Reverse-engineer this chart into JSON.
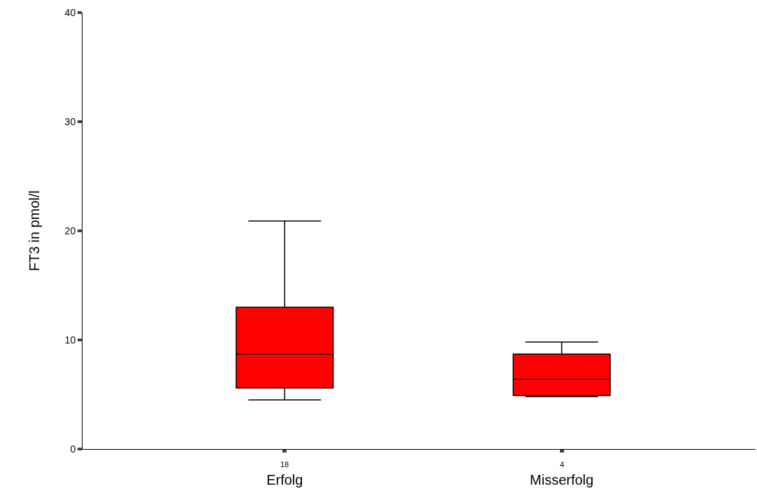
{
  "chart_data": {
    "type": "box",
    "ylabel": "FT3 in pmol/l",
    "categories": [
      "Erfolg",
      "Misserfolg"
    ],
    "boxes": [
      {
        "low": 4.5,
        "q1": 5.6,
        "median": 8.7,
        "q3": 13.0,
        "high": 20.9
      },
      {
        "low": 4.8,
        "q1": 4.9,
        "median": 6.4,
        "q3": 8.7,
        "high": 9.8
      }
    ],
    "color": "#ff0000",
    "ylim": [
      0,
      40
    ],
    "yticks": [
      0,
      10,
      20,
      30,
      40
    ],
    "annotations": [
      "18",
      "4"
    ]
  }
}
